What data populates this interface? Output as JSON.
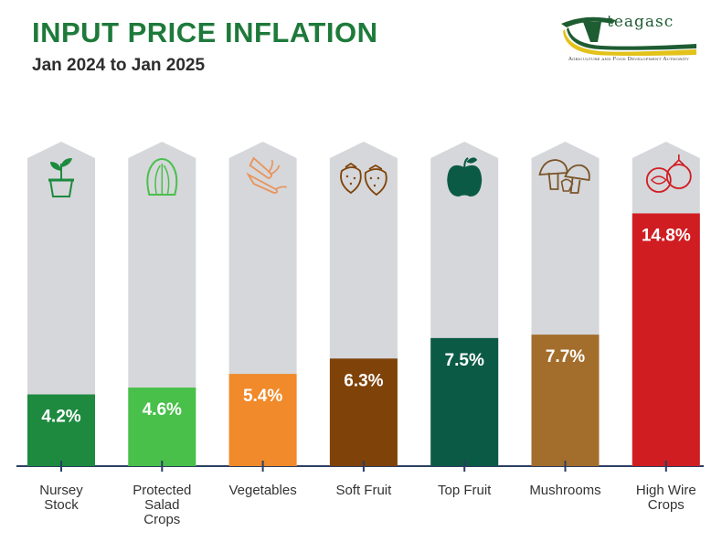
{
  "header": {
    "title": "INPUT PRICE INFLATION",
    "subtitle": "Jan 2024 to Jan 2025"
  },
  "logo": {
    "wordmark": "TEAGASC",
    "tagline": "Agriculture and Food Development Authority",
    "colors": {
      "green": "#1e5c32",
      "yellow": "#e3c21a"
    }
  },
  "chart_data": {
    "type": "bar",
    "title": "INPUT PRICE INFLATION",
    "subtitle": "Jan 2024 to Jan 2025",
    "categories": [
      [
        "Nursey",
        "Stock"
      ],
      [
        "Protected",
        "Salad",
        "Crops"
      ],
      [
        "Vegetables"
      ],
      [
        "Soft Fruit"
      ],
      [
        "Top Fruit"
      ],
      [
        "Mushrooms"
      ],
      [
        "High Wire",
        "Crops"
      ]
    ],
    "values": [
      4.2,
      4.6,
      5.4,
      6.3,
      7.5,
      7.7,
      14.8
    ],
    "labels": [
      "4.2%",
      "4.6%",
      "5.4%",
      "6.3%",
      "7.5%",
      "7.7%",
      "14.8%"
    ],
    "unit": "%",
    "colors": [
      "#1d8a3f",
      "#48c04a",
      "#f08a2a",
      "#7f4208",
      "#0b5a45",
      "#a36d2b",
      "#d01d22"
    ],
    "icons": [
      "plant-pot-icon",
      "lettuce-icon",
      "carrot-icon",
      "strawberry-icon",
      "apple-icon",
      "mushroom-icon",
      "tomato-icon"
    ],
    "icon_colors": [
      "#1d8a3f",
      "#48c04a",
      "#e9935a",
      "#7f4208",
      "#0b5a45",
      "#7a5428",
      "#d01d22"
    ],
    "track_color": "#d5d7da",
    "axis_color": "#2c3e62",
    "value_label_color": "#ffffff",
    "ylim": [
      0,
      19
    ],
    "grid": false,
    "legend": "none"
  }
}
